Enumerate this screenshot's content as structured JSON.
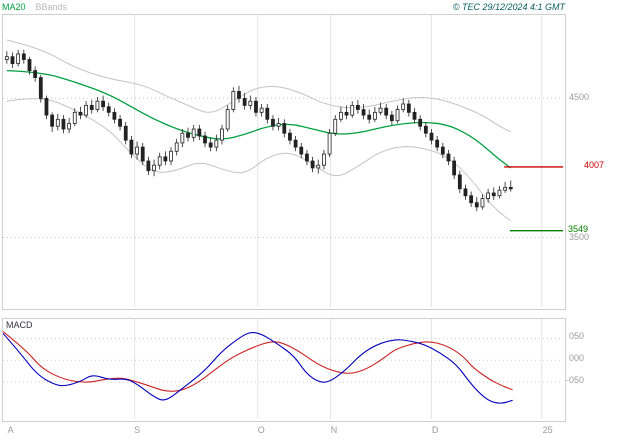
{
  "legend": {
    "ma20": "MA20",
    "bbands": "BBands"
  },
  "copyright": "© TEC 29/12/2024 4:1 GMT",
  "colors": {
    "ma20": "#00a040",
    "bbands": "#c4c4c4",
    "candle": "#222222",
    "macd_line": "#0000bb",
    "signal_line": "#cc2222",
    "resistance": "#cc0000",
    "support": "#008000",
    "grid": "#cccccc",
    "vgrid": "#e4e4e4",
    "tick_text": "#9a9a9a"
  },
  "chart_data": {
    "type": "candlestick",
    "title": "",
    "x_axis": {
      "labels": [
        {
          "label": "A",
          "pos": 0.01
        },
        {
          "label": "S",
          "pos": 0.235
        },
        {
          "label": "O",
          "pos": 0.455
        },
        {
          "label": "N",
          "pos": 0.585
        },
        {
          "label": "D",
          "pos": 0.765
        },
        {
          "label": "25",
          "pos": 0.962
        }
      ]
    },
    "price_panel": {
      "ylim": [
        3000,
        5100
      ],
      "gridlines": [
        {
          "value": 4500,
          "label": "4500"
        },
        {
          "value": 3500,
          "label": "3500"
        }
      ],
      "levels": [
        {
          "value": 4007,
          "label": "4007",
          "color": "#cc0000",
          "from": 0.895
        },
        {
          "value": 3549,
          "label": "3549",
          "color": "#008000",
          "from": 0.905
        }
      ],
      "candles": [
        [
          4780,
          4840,
          4750,
          4800
        ],
        [
          4800,
          4830,
          4720,
          4750
        ],
        [
          4750,
          4850,
          4730,
          4820
        ],
        [
          4820,
          4850,
          4750,
          4780
        ],
        [
          4780,
          4800,
          4670,
          4700
        ],
        [
          4700,
          4730,
          4620,
          4650
        ],
        [
          4650,
          4670,
          4470,
          4500
        ],
        [
          4500,
          4520,
          4350,
          4380
        ],
        [
          4380,
          4400,
          4260,
          4300
        ],
        [
          4300,
          4390,
          4270,
          4350
        ],
        [
          4350,
          4380,
          4250,
          4280
        ],
        [
          4280,
          4360,
          4250,
          4320
        ],
        [
          4320,
          4430,
          4300,
          4400
        ],
        [
          4400,
          4440,
          4350,
          4380
        ],
        [
          4380,
          4480,
          4360,
          4450
        ],
        [
          4450,
          4490,
          4390,
          4420
        ],
        [
          4420,
          4510,
          4400,
          4480
        ],
        [
          4480,
          4520,
          4410,
          4440
        ],
        [
          4440,
          4470,
          4370,
          4400
        ],
        [
          4400,
          4430,
          4320,
          4350
        ],
        [
          4350,
          4380,
          4270,
          4300
        ],
        [
          4300,
          4330,
          4170,
          4200
        ],
        [
          4200,
          4230,
          4070,
          4100
        ],
        [
          4100,
          4190,
          4060,
          4150
        ],
        [
          4150,
          4180,
          4020,
          4050
        ],
        [
          4050,
          4080,
          3950,
          3980
        ],
        [
          3980,
          4060,
          3940,
          4020
        ],
        [
          4020,
          4110,
          3990,
          4080
        ],
        [
          4080,
          4120,
          4020,
          4050
        ],
        [
          4050,
          4150,
          4020,
          4120
        ],
        [
          4120,
          4210,
          4090,
          4180
        ],
        [
          4180,
          4280,
          4150,
          4250
        ],
        [
          4250,
          4290,
          4190,
          4220
        ],
        [
          4220,
          4310,
          4190,
          4280
        ],
        [
          4280,
          4310,
          4200,
          4230
        ],
        [
          4230,
          4260,
          4150,
          4180
        ],
        [
          4180,
          4220,
          4120,
          4150
        ],
        [
          4150,
          4240,
          4120,
          4200
        ],
        [
          4200,
          4310,
          4170,
          4280
        ],
        [
          4280,
          4450,
          4260,
          4420
        ],
        [
          4420,
          4580,
          4400,
          4550
        ],
        [
          4550,
          4590,
          4470,
          4500
        ],
        [
          4500,
          4540,
          4420,
          4450
        ],
        [
          4450,
          4520,
          4420,
          4480
        ],
        [
          4480,
          4510,
          4370,
          4400
        ],
        [
          4400,
          4460,
          4370,
          4430
        ],
        [
          4430,
          4460,
          4320,
          4350
        ],
        [
          4350,
          4380,
          4270,
          4300
        ],
        [
          4300,
          4360,
          4270,
          4320
        ],
        [
          4320,
          4350,
          4220,
          4250
        ],
        [
          4250,
          4280,
          4170,
          4200
        ],
        [
          4200,
          4230,
          4120,
          4150
        ],
        [
          4150,
          4180,
          4070,
          4100
        ],
        [
          4100,
          4130,
          4020,
          4050
        ],
        [
          4050,
          4080,
          3970,
          4000
        ],
        [
          4000,
          4060,
          3960,
          4020
        ],
        [
          4020,
          4130,
          3990,
          4100
        ],
        [
          4100,
          4280,
          4080,
          4250
        ],
        [
          4250,
          4380,
          4230,
          4350
        ],
        [
          4350,
          4440,
          4330,
          4400
        ],
        [
          4400,
          4450,
          4350,
          4380
        ],
        [
          4380,
          4480,
          4360,
          4450
        ],
        [
          4450,
          4490,
          4390,
          4420
        ],
        [
          4420,
          4460,
          4350,
          4380
        ],
        [
          4380,
          4420,
          4320,
          4350
        ],
        [
          4350,
          4440,
          4330,
          4400
        ],
        [
          4400,
          4470,
          4380,
          4430
        ],
        [
          4430,
          4460,
          4350,
          4380
        ],
        [
          4380,
          4410,
          4310,
          4340
        ],
        [
          4340,
          4450,
          4320,
          4420
        ],
        [
          4420,
          4500,
          4400,
          4460
        ],
        [
          4460,
          4490,
          4370,
          4400
        ],
        [
          4400,
          4430,
          4320,
          4350
        ],
        [
          4350,
          4380,
          4270,
          4300
        ],
        [
          4300,
          4330,
          4220,
          4250
        ],
        [
          4250,
          4280,
          4170,
          4200
        ],
        [
          4200,
          4230,
          4120,
          4150
        ],
        [
          4150,
          4180,
          4070,
          4100
        ],
        [
          4100,
          4130,
          4020,
          4050
        ],
        [
          4050,
          4080,
          3920,
          3950
        ],
        [
          3950,
          3980,
          3820,
          3850
        ],
        [
          3850,
          3880,
          3770,
          3800
        ],
        [
          3800,
          3830,
          3720,
          3750
        ],
        [
          3750,
          3790,
          3690,
          3720
        ],
        [
          3720,
          3810,
          3700,
          3780
        ],
        [
          3780,
          3850,
          3750,
          3820
        ],
        [
          3820,
          3860,
          3770,
          3800
        ],
        [
          3800,
          3870,
          3780,
          3840
        ],
        [
          3840,
          3900,
          3820,
          3860
        ],
        [
          3860,
          3910,
          3830,
          3850
        ]
      ],
      "ma20": [
        [
          0,
          4700
        ],
        [
          6,
          4690
        ],
        [
          12,
          4620
        ],
        [
          18,
          4530
        ],
        [
          22,
          4440
        ],
        [
          26,
          4350
        ],
        [
          30,
          4280
        ],
        [
          34,
          4230
        ],
        [
          38,
          4200
        ],
        [
          42,
          4240
        ],
        [
          46,
          4300
        ],
        [
          50,
          4320
        ],
        [
          54,
          4280
        ],
        [
          58,
          4240
        ],
        [
          62,
          4250
        ],
        [
          66,
          4290
        ],
        [
          70,
          4320
        ],
        [
          74,
          4330
        ],
        [
          78,
          4310
        ],
        [
          82,
          4230
        ],
        [
          85,
          4130
        ],
        [
          87,
          4060
        ],
        [
          89,
          4000
        ]
      ],
      "bb_upper": [
        [
          0,
          4920
        ],
        [
          6,
          4860
        ],
        [
          12,
          4720
        ],
        [
          18,
          4640
        ],
        [
          24,
          4600
        ],
        [
          28,
          4520
        ],
        [
          32,
          4450
        ],
        [
          36,
          4380
        ],
        [
          40,
          4480
        ],
        [
          44,
          4580
        ],
        [
          48,
          4590
        ],
        [
          52,
          4540
        ],
        [
          56,
          4460
        ],
        [
          60,
          4430
        ],
        [
          64,
          4440
        ],
        [
          68,
          4480
        ],
        [
          72,
          4510
        ],
        [
          76,
          4500
        ],
        [
          80,
          4450
        ],
        [
          84,
          4380
        ],
        [
          87,
          4300
        ],
        [
          89,
          4260
        ]
      ],
      "bb_lower": [
        [
          0,
          4480
        ],
        [
          6,
          4520
        ],
        [
          12,
          4420
        ],
        [
          18,
          4280
        ],
        [
          22,
          4100
        ],
        [
          26,
          3960
        ],
        [
          30,
          3980
        ],
        [
          34,
          4050
        ],
        [
          38,
          3990
        ],
        [
          42,
          3950
        ],
        [
          46,
          4080
        ],
        [
          50,
          4120
        ],
        [
          54,
          4030
        ],
        [
          58,
          3920
        ],
        [
          62,
          4010
        ],
        [
          66,
          4120
        ],
        [
          70,
          4160
        ],
        [
          74,
          4140
        ],
        [
          78,
          4080
        ],
        [
          82,
          3920
        ],
        [
          85,
          3760
        ],
        [
          87,
          3680
        ],
        [
          89,
          3620
        ]
      ]
    },
    "macd_panel": {
      "label": "MACD",
      "ylim": [
        -135,
        95
      ],
      "gridlines": [
        {
          "value": 50,
          "label": "050"
        },
        {
          "value": 0,
          "label": "000"
        },
        {
          "value": -50,
          "label": "-050"
        }
      ],
      "macd_line": [
        [
          0.0,
          62
        ],
        [
          0.03,
          18
        ],
        [
          0.06,
          -32
        ],
        [
          0.09,
          -55
        ],
        [
          0.11,
          -60
        ],
        [
          0.14,
          -48
        ],
        [
          0.16,
          -32
        ],
        [
          0.19,
          -45
        ],
        [
          0.22,
          -42
        ],
        [
          0.24,
          -55
        ],
        [
          0.27,
          -85
        ],
        [
          0.29,
          -95
        ],
        [
          0.32,
          -65
        ],
        [
          0.36,
          -25
        ],
        [
          0.39,
          20
        ],
        [
          0.42,
          50
        ],
        [
          0.44,
          65
        ],
        [
          0.46,
          62
        ],
        [
          0.49,
          38
        ],
        [
          0.52,
          10
        ],
        [
          0.54,
          -28
        ],
        [
          0.56,
          -48
        ],
        [
          0.58,
          -52
        ],
        [
          0.61,
          -25
        ],
        [
          0.64,
          15
        ],
        [
          0.67,
          38
        ],
        [
          0.7,
          48
        ],
        [
          0.72,
          46
        ],
        [
          0.75,
          38
        ],
        [
          0.78,
          18
        ],
        [
          0.81,
          -10
        ],
        [
          0.83,
          -45
        ],
        [
          0.85,
          -75
        ],
        [
          0.87,
          -95
        ],
        [
          0.89,
          -100
        ],
        [
          0.91,
          -92
        ]
      ],
      "signal_line": [
        [
          0.0,
          66
        ],
        [
          0.04,
          25
        ],
        [
          0.07,
          -20
        ],
        [
          0.11,
          -45
        ],
        [
          0.15,
          -52
        ],
        [
          0.18,
          -44
        ],
        [
          0.21,
          -40
        ],
        [
          0.23,
          -46
        ],
        [
          0.26,
          -58
        ],
        [
          0.29,
          -72
        ],
        [
          0.32,
          -70
        ],
        [
          0.35,
          -50
        ],
        [
          0.38,
          -20
        ],
        [
          0.41,
          8
        ],
        [
          0.45,
          32
        ],
        [
          0.48,
          44
        ],
        [
          0.5,
          40
        ],
        [
          0.53,
          20
        ],
        [
          0.56,
          -8
        ],
        [
          0.59,
          -25
        ],
        [
          0.62,
          -32
        ],
        [
          0.65,
          -20
        ],
        [
          0.68,
          5
        ],
        [
          0.7,
          25
        ],
        [
          0.73,
          38
        ],
        [
          0.76,
          44
        ],
        [
          0.79,
          35
        ],
        [
          0.82,
          12
        ],
        [
          0.84,
          -18
        ],
        [
          0.87,
          -45
        ],
        [
          0.89,
          -58
        ],
        [
          0.91,
          -68
        ]
      ]
    }
  }
}
